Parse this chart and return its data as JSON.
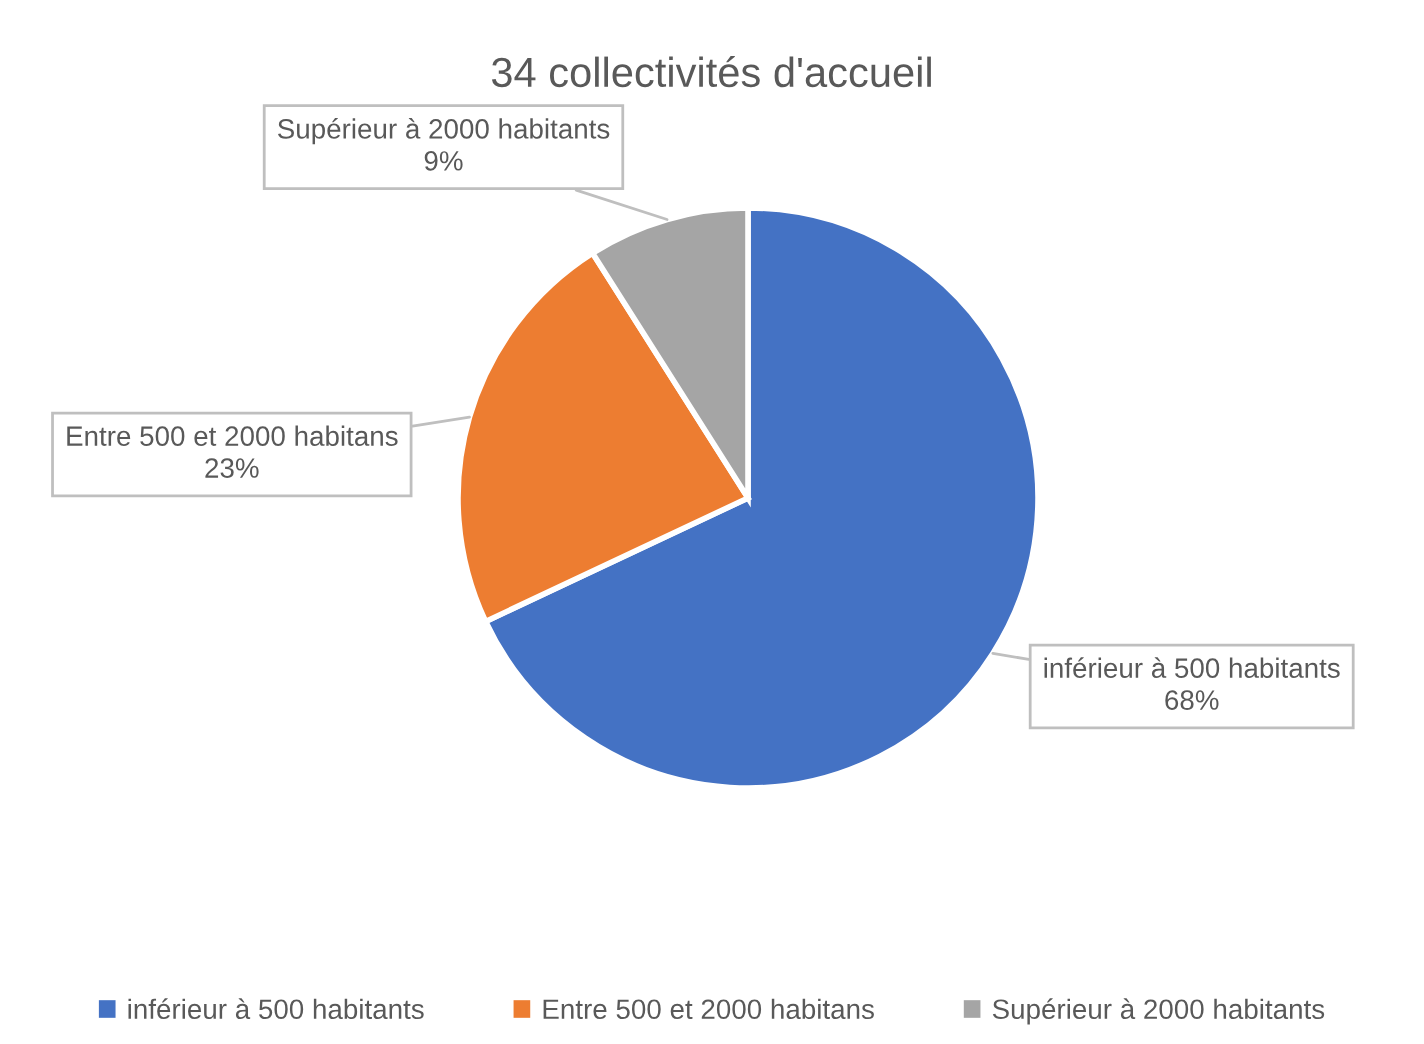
{
  "chart_data": {
    "type": "pie",
    "title": "34 collectivités d'accueil",
    "categories": [
      "inférieur à 500 habitants",
      "Entre 500 et 2000 habitans",
      "Supérieur à 2000 habitants"
    ],
    "values": [
      68,
      23,
      9
    ],
    "colors": [
      "#4472c4",
      "#ed7d31",
      "#a5a5a5"
    ],
    "value_labels": [
      "68%",
      "23%",
      "9%"
    ],
    "legend": "bottom"
  }
}
